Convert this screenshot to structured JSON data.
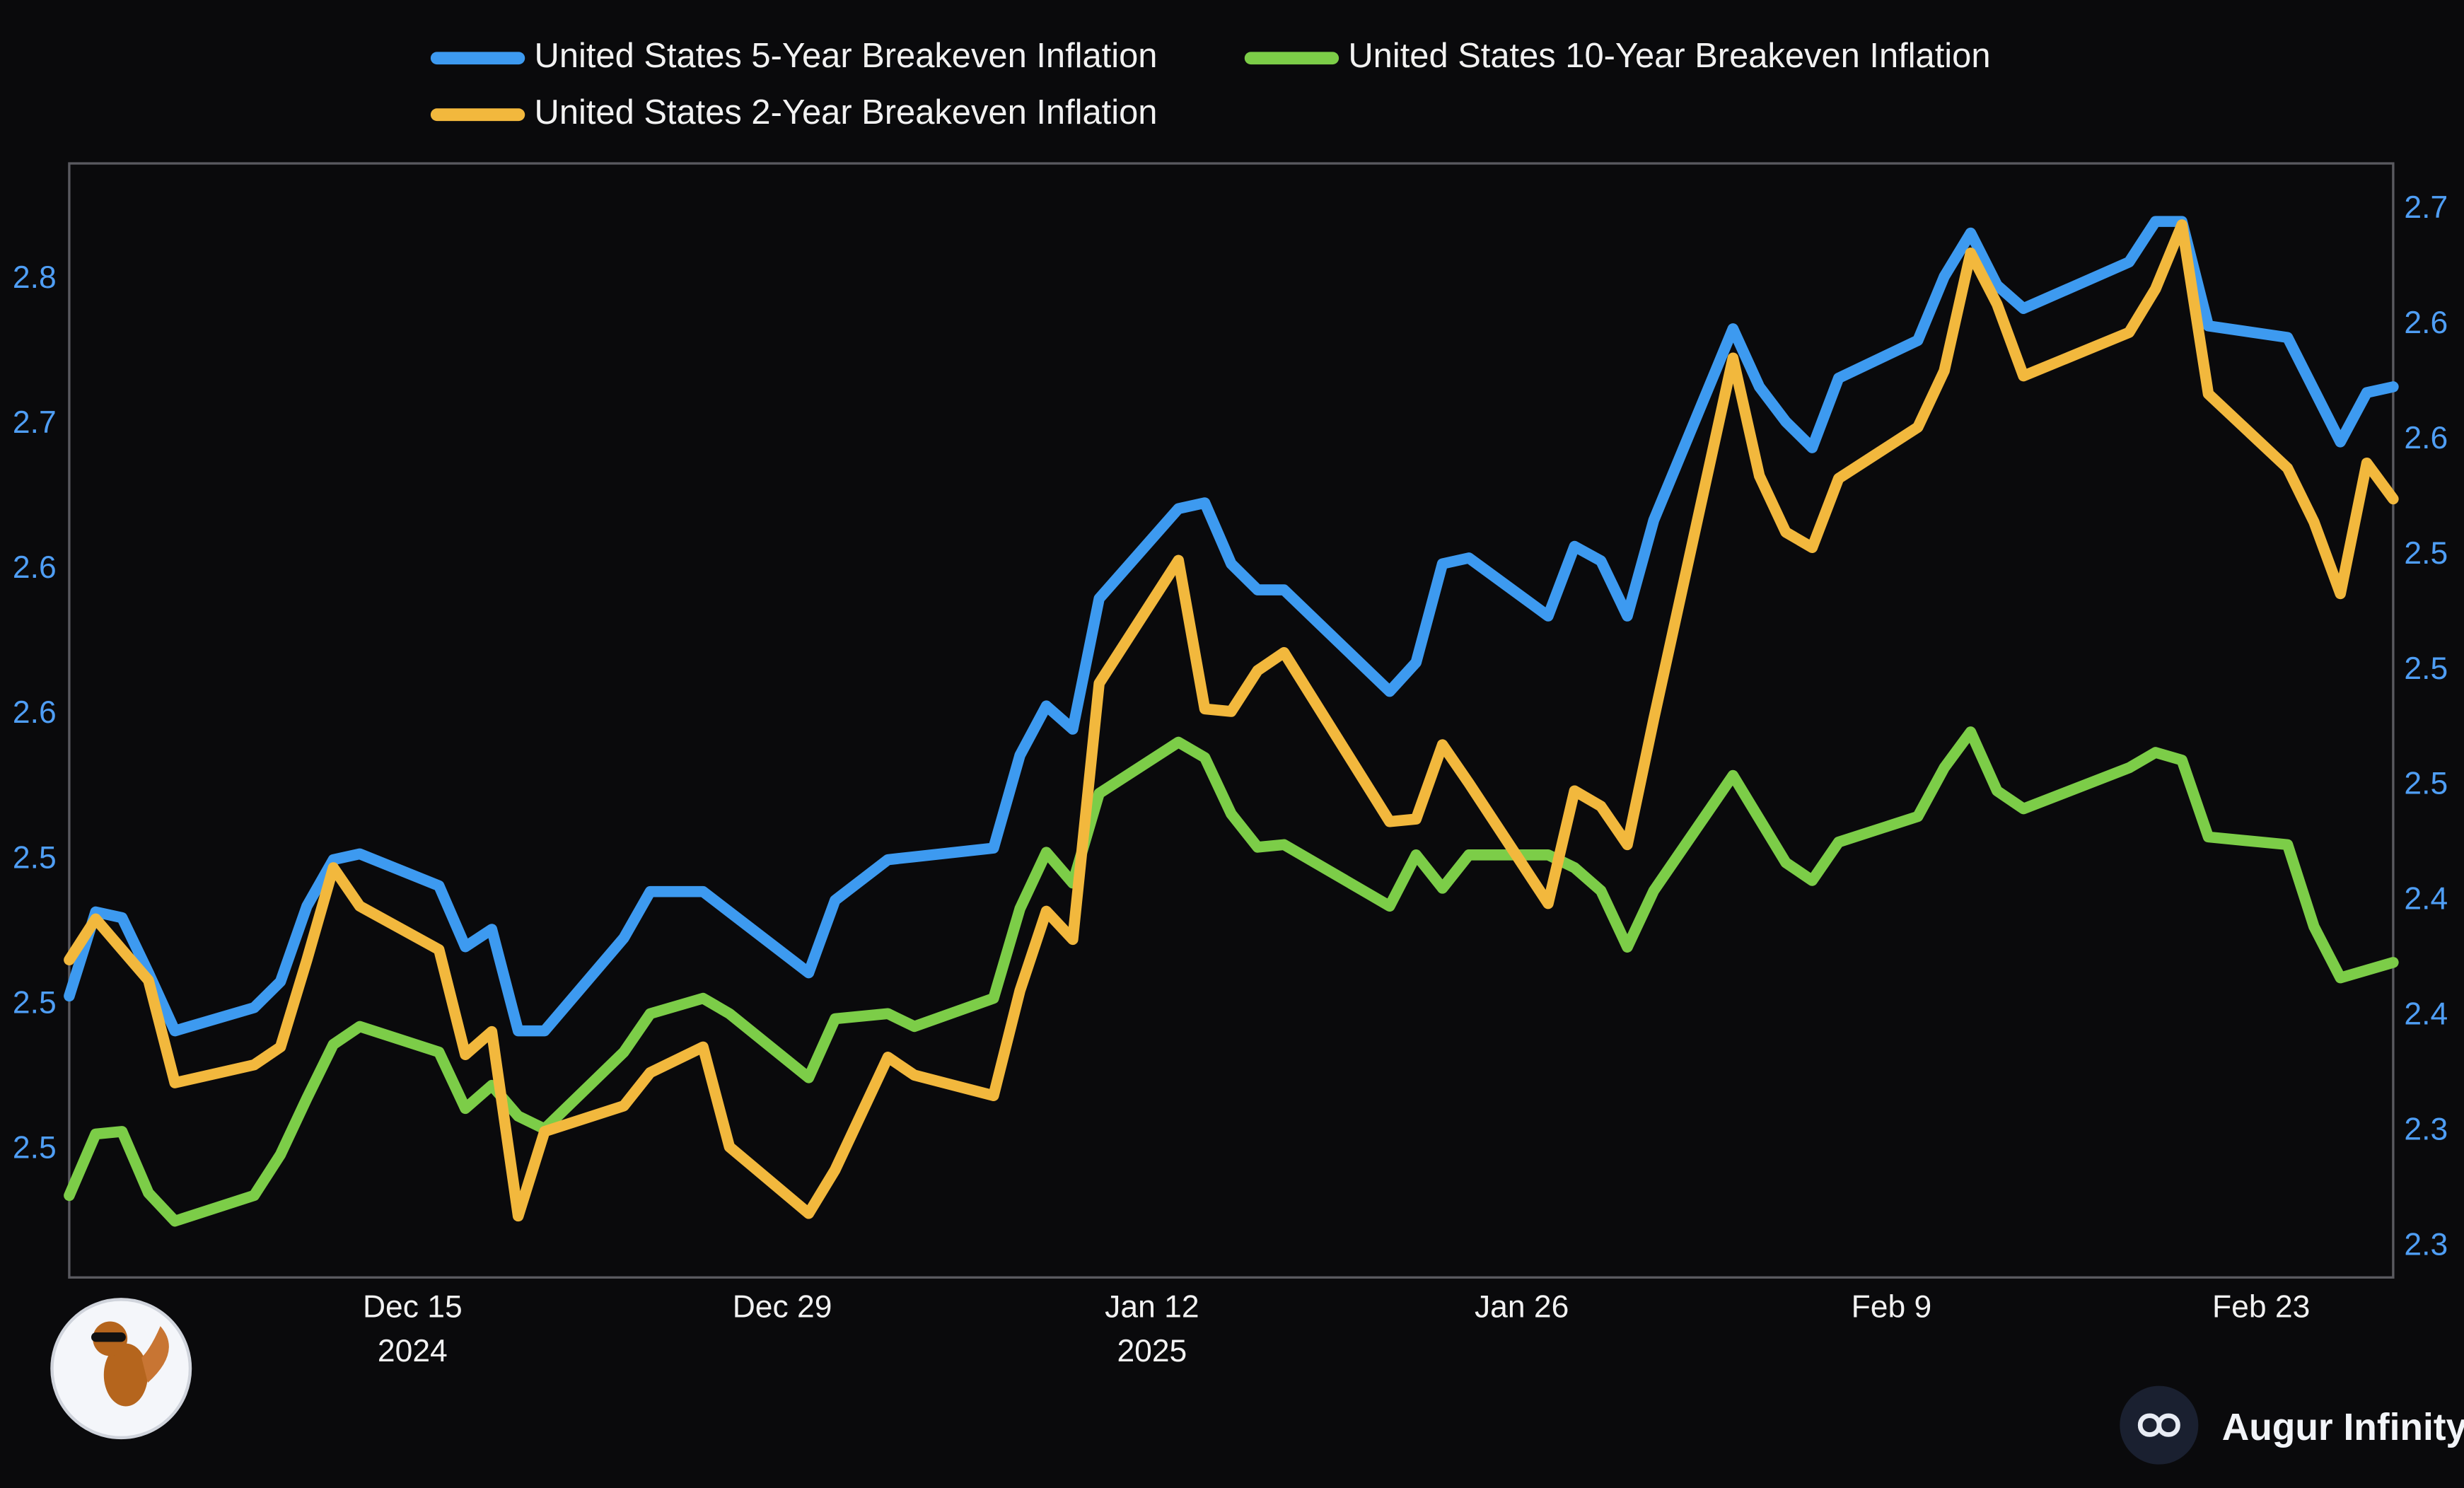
{
  "chart_data": {
    "type": "line",
    "x": [
      "2024-12-02",
      "2024-12-03",
      "2024-12-04",
      "2024-12-05",
      "2024-12-06",
      "2024-12-09",
      "2024-12-10",
      "2024-12-11",
      "2024-12-12",
      "2024-12-13",
      "2024-12-16",
      "2024-12-17",
      "2024-12-18",
      "2024-12-19",
      "2024-12-20",
      "2024-12-23",
      "2024-12-24",
      "2024-12-26",
      "2024-12-27",
      "2024-12-30",
      "2024-12-31",
      "2025-01-02",
      "2025-01-03",
      "2025-01-06",
      "2025-01-07",
      "2025-01-08",
      "2025-01-09",
      "2025-01-10",
      "2025-01-13",
      "2025-01-14",
      "2025-01-15",
      "2025-01-16",
      "2025-01-17",
      "2025-01-21",
      "2025-01-22",
      "2025-01-23",
      "2025-01-24",
      "2025-01-27",
      "2025-01-28",
      "2025-01-29",
      "2025-01-30",
      "2025-01-31",
      "2025-02-03",
      "2025-02-04",
      "2025-02-05",
      "2025-02-06",
      "2025-02-07",
      "2025-02-10",
      "2025-02-11",
      "2025-02-12",
      "2025-02-13",
      "2025-02-14",
      "2025-02-18",
      "2025-02-19",
      "2025-02-20",
      "2025-02-21",
      "2025-02-24",
      "2025-02-25",
      "2025-02-26",
      "2025-02-27",
      "2025-02-28"
    ],
    "series": [
      {
        "name": "United States 5-Year Breakeven Inflation",
        "color": "#3d9af0",
        "axis": "y",
        "values": [
          2.503,
          2.532,
          2.53,
          2.511,
          2.491,
          2.499,
          2.508,
          2.534,
          2.55,
          2.552,
          2.541,
          2.52,
          2.526,
          2.491,
          2.491,
          2.523,
          2.539,
          2.539,
          2.532,
          2.511,
          2.536,
          2.55,
          2.551,
          2.554,
          2.586,
          2.603,
          2.595,
          2.64,
          2.671,
          2.673,
          2.652,
          2.643,
          2.643,
          2.608,
          2.618,
          2.652,
          2.654,
          2.634,
          2.658,
          2.653,
          2.634,
          2.667,
          2.733,
          2.713,
          2.701,
          2.692,
          2.716,
          2.729,
          2.751,
          2.766,
          2.748,
          2.74,
          2.756,
          2.77,
          2.77,
          2.734,
          2.73,
          2.712,
          2.694,
          2.711,
          2.713
        ]
      },
      {
        "name": "United States 10-Year Breakeven Inflation",
        "color": "#7ccd48",
        "axis": "y2",
        "values": [
          2.29,
          2.314,
          2.315,
          2.291,
          2.28,
          2.29,
          2.306,
          2.328,
          2.349,
          2.356,
          2.346,
          2.324,
          2.333,
          2.321,
          2.316,
          2.346,
          2.361,
          2.367,
          2.361,
          2.336,
          2.359,
          2.361,
          2.356,
          2.367,
          2.402,
          2.424,
          2.412,
          2.447,
          2.467,
          2.461,
          2.439,
          2.426,
          2.427,
          2.403,
          2.423,
          2.41,
          2.423,
          2.423,
          2.418,
          2.409,
          2.387,
          2.409,
          2.454,
          2.437,
          2.42,
          2.413,
          2.428,
          2.438,
          2.457,
          2.471,
          2.448,
          2.441,
          2.457,
          2.463,
          2.46,
          2.43,
          2.427,
          2.395,
          2.375,
          2.378,
          2.381
        ]
      },
      {
        "name": "United States 2-Year Breakeven Inflation",
        "color": "#f2b83d",
        "axis": "y2",
        "values": [
          2.382,
          2.398,
          2.386,
          2.374,
          2.334,
          2.341,
          2.348,
          2.382,
          2.418,
          2.403,
          2.386,
          2.345,
          2.354,
          2.282,
          2.315,
          2.325,
          2.338,
          2.348,
          2.309,
          2.283,
          2.3,
          2.344,
          2.337,
          2.329,
          2.37,
          2.401,
          2.39,
          2.49,
          2.538,
          2.48,
          2.479,
          2.495,
          2.502,
          2.436,
          2.437,
          2.466,
          2.451,
          2.404,
          2.448,
          2.442,
          2.427,
          2.476,
          2.617,
          2.571,
          2.549,
          2.543,
          2.57,
          2.59,
          2.612,
          2.658,
          2.638,
          2.61,
          2.627,
          2.644,
          2.669,
          2.603,
          2.574,
          2.553,
          2.525,
          2.576,
          2.562
        ]
      }
    ],
    "xlim": [
      "2024-12-02",
      "2025-02-28"
    ],
    "xticks": [
      {
        "value": "2024-12-15",
        "label": "Dec 15\n2024"
      },
      {
        "value": "2024-12-29",
        "label": "Dec 29"
      },
      {
        "value": "2025-01-12",
        "label": "Jan 12\n2025"
      },
      {
        "value": "2025-01-26",
        "label": "Jan 26"
      },
      {
        "value": "2025-02-09",
        "label": "Feb 9"
      },
      {
        "value": "2025-02-23",
        "label": "Feb 23"
      }
    ],
    "ylim": [
      2.406,
      2.79
    ],
    "yticks": [
      {
        "value": 2.45,
        "label": "2.5"
      },
      {
        "value": 2.5,
        "label": "2.5"
      },
      {
        "value": 2.55,
        "label": "2.5"
      },
      {
        "value": 2.6,
        "label": "2.6"
      },
      {
        "value": 2.65,
        "label": "2.6"
      },
      {
        "value": 2.7,
        "label": "2.7"
      },
      {
        "value": 2.75,
        "label": "2.8"
      }
    ],
    "y2lim": [
      2.258,
      2.693
    ],
    "y2ticks": [
      {
        "value": 2.27,
        "label": "2.3"
      },
      {
        "value": 2.315,
        "label": "2.3"
      },
      {
        "value": 2.36,
        "label": "2.4"
      },
      {
        "value": 2.405,
        "label": "2.4"
      },
      {
        "value": 2.45,
        "label": "2.5"
      },
      {
        "value": 2.495,
        "label": "2.5"
      },
      {
        "value": 2.54,
        "label": "2.5"
      },
      {
        "value": 2.585,
        "label": "2.6"
      },
      {
        "value": 2.63,
        "label": "2.6"
      },
      {
        "value": 2.675,
        "label": "2.7"
      }
    ],
    "grid": false,
    "legend": "top",
    "watermark": "Augur Infinity"
  }
}
